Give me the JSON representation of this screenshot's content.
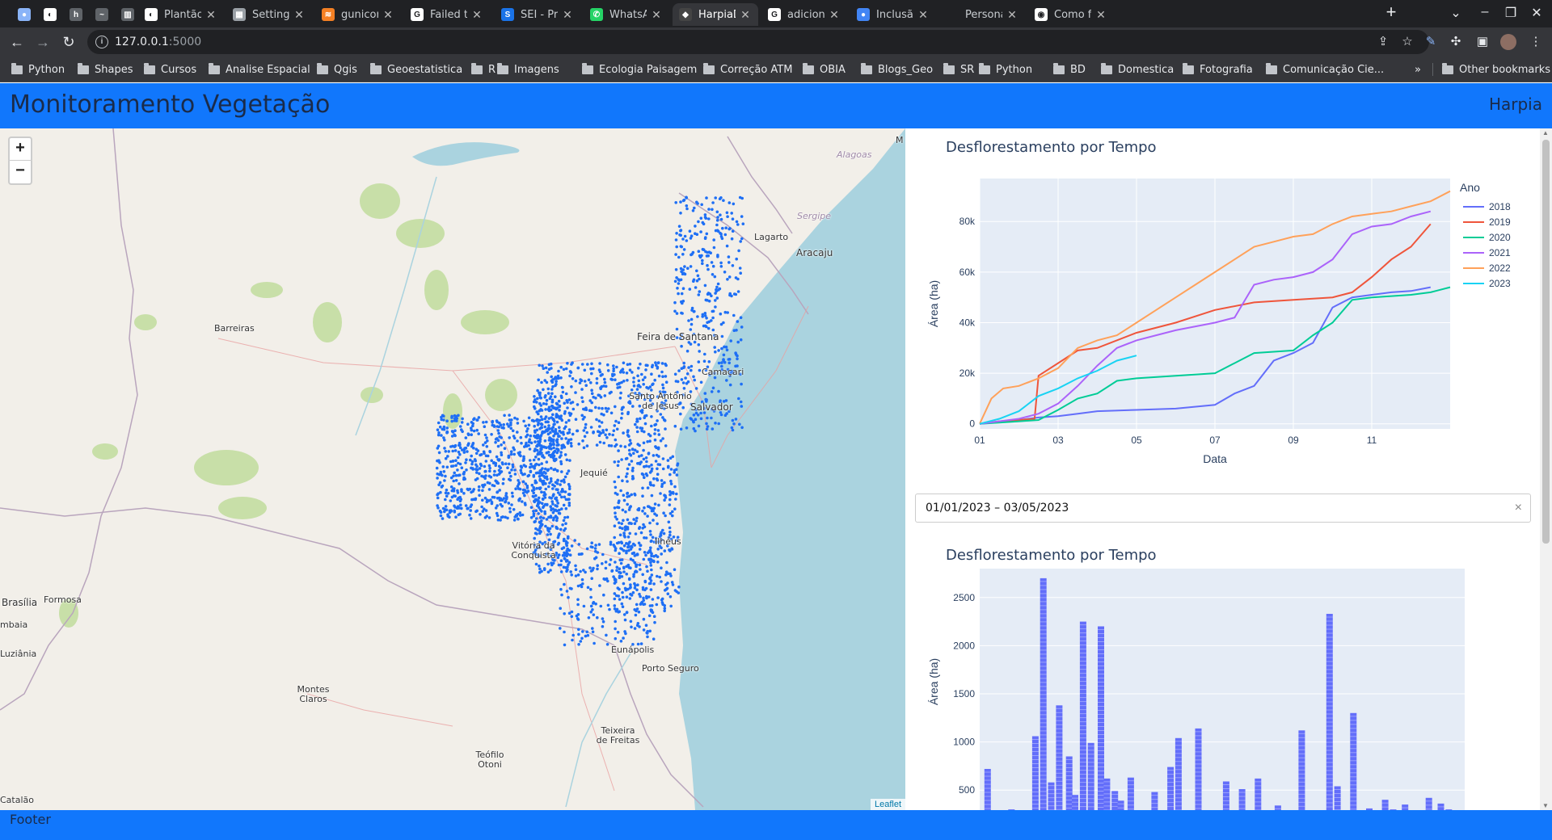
{
  "browser": {
    "tabs": [
      {
        "title": "",
        "color": "#8ab4f8",
        "glyph": "●"
      },
      {
        "title": "",
        "color": "#ffffff",
        "glyph": "◐"
      },
      {
        "title": "",
        "color": "#5f6368",
        "glyph": "h"
      },
      {
        "title": "",
        "color": "#5f6368",
        "glyph": "~"
      },
      {
        "title": "",
        "color": "#5f6368",
        "glyph": "▥"
      },
      {
        "title": "Plantão de",
        "color": "#ffffff",
        "glyph": "◐"
      },
      {
        "title": "Settings — i",
        "color": "#9aa0a6",
        "glyph": "▦"
      },
      {
        "title": "gunicorn - F",
        "color": "#f48024",
        "glyph": "≋"
      },
      {
        "title": "Failed to fin",
        "color": "#ffffff",
        "glyph": "G"
      },
      {
        "title": "SEI - Process",
        "color": "#1a73e8",
        "glyph": "S"
      },
      {
        "title": "WhatsApp",
        "color": "#25d366",
        "glyph": "✆"
      },
      {
        "title": "HarpiaDash",
        "color": "#444444",
        "glyph": "◆"
      },
      {
        "title": "adicionar im",
        "color": "#ffffff",
        "glyph": "G"
      },
      {
        "title": "Inclusão de",
        "color": "#4285f4",
        "glyph": "●"
      },
      {
        "title": "Personalizar",
        "color": "#202124",
        "glyph": ""
      },
      {
        "title": "Como fazer",
        "color": "#ffffff",
        "glyph": "◉"
      }
    ],
    "new_tab": "+",
    "url_host": "127.0.0.1",
    "url_port": ":5000",
    "bookmarks": [
      "Python",
      "Shapes",
      "Cursos",
      "Analise Espacial",
      "Qgis",
      "Geoestatistica",
      "R",
      "Imagens",
      "Ecologia Paisagem",
      "Correção ATM",
      "OBIA",
      "Blogs_Geo",
      "SR",
      "Python",
      "BD",
      "Domestica",
      "Fotografia",
      "Comunicação Cie..."
    ],
    "bookmarks_overflow": "»",
    "other_bookmarks": "Other bookmarks"
  },
  "app": {
    "title": "Monitoramento Vegetação",
    "brand": "Harpia",
    "footer": "Footer"
  },
  "map": {
    "zoom_in": "+",
    "zoom_out": "−",
    "attribution": "Leaflet",
    "places": {
      "alagoas": "Alagoas",
      "sergipe": "Sergipe",
      "lagarto": "Lagarto",
      "aracaju": "Aracaju",
      "barreiras": "Barreiras",
      "feira": "Feira de Santana",
      "camacari": "Camaçari",
      "santo_antonio": "Santo Antônio de Jesus",
      "salvador": "Salvador",
      "jequie": "Jequié",
      "ilheus": "Ilhéus",
      "vitoria": "Vitória da Conquista",
      "brasilia": "Brasília",
      "formosa": "Formosa",
      "luziania": "Luziânia",
      "cambaia": "mbaia",
      "montes_claros": "Montes Claros",
      "eunapolis": "Eunápolis",
      "porto_seguro": "Porto Seguro",
      "teixeira": "Teixeira de Freitas",
      "teofilo": "Teófilo Otoni",
      "catalao": "Catalão",
      "m": "M"
    },
    "point_color": "#1e6ff5"
  },
  "date_picker": {
    "value": "01/01/2023 – 03/05/2023",
    "clear": "×"
  },
  "line_chart_title": "Desflorestamento por Tempo",
  "bar_chart_title": "Desflorestamento por Tempo",
  "chart_data": [
    {
      "type": "line",
      "title": "Desflorestamento por Tempo",
      "xlabel": "Data",
      "ylabel": "Área (ha)",
      "legend_title": "Ano",
      "legend_position": "right",
      "x_ticks": [
        "01",
        "03",
        "05",
        "07",
        "09",
        "11"
      ],
      "y_ticks": [
        "0",
        "20k",
        "40k",
        "60k",
        "80k"
      ],
      "xlim": [
        1,
        13
      ],
      "ylim": [
        -2000,
        97000
      ],
      "grid": true,
      "series": [
        {
          "name": "2018",
          "color": "#636efa",
          "x": [
            1,
            1.5,
            2,
            2.5,
            3,
            3.5,
            4,
            5,
            6,
            7,
            7.5,
            8,
            8.5,
            9,
            9.5,
            10,
            10.5,
            11,
            11.5,
            12,
            12.5
          ],
          "y": [
            0,
            1000,
            1500,
            2500,
            3000,
            4000,
            5000,
            5500,
            6000,
            7500,
            12000,
            15000,
            25000,
            28000,
            32000,
            46000,
            50000,
            51000,
            52000,
            52500,
            54000
          ]
        },
        {
          "name": "2019",
          "color": "#ef553b",
          "x": [
            1,
            1.5,
            2,
            2.4,
            2.5,
            3,
            3.5,
            4,
            5,
            6,
            7,
            8,
            9,
            10,
            10.5,
            11,
            11.5,
            12,
            12.5
          ],
          "y": [
            0,
            1000,
            1500,
            2000,
            19000,
            24000,
            29000,
            30000,
            36000,
            40000,
            45000,
            48000,
            49000,
            50000,
            52000,
            58000,
            65000,
            70000,
            79000
          ]
        },
        {
          "name": "2020",
          "color": "#00cc96",
          "x": [
            1,
            1.5,
            2,
            2.5,
            3,
            3.5,
            4,
            4.5,
            5,
            6,
            7,
            7.5,
            8,
            9,
            9.5,
            10,
            10.5,
            11,
            12,
            12.5,
            13
          ],
          "y": [
            0,
            500,
            1000,
            1500,
            5500,
            10000,
            12000,
            17000,
            18000,
            19000,
            20000,
            24000,
            28000,
            29000,
            35000,
            40000,
            49000,
            50000,
            51000,
            52000,
            54000
          ]
        },
        {
          "name": "2021",
          "color": "#ab63fa",
          "x": [
            1,
            2,
            2.5,
            3,
            3.5,
            4,
            4.5,
            5,
            5.5,
            6,
            7,
            7.5,
            8,
            8.5,
            9,
            9.5,
            10,
            10.5,
            11,
            11.5,
            12,
            12.5
          ],
          "y": [
            0,
            2000,
            4000,
            8000,
            15000,
            23000,
            30000,
            33000,
            35000,
            37000,
            40000,
            42000,
            55000,
            57000,
            58000,
            60000,
            65000,
            75000,
            78000,
            79000,
            82000,
            84000
          ]
        },
        {
          "name": "2022",
          "color": "#ffa15a",
          "x": [
            1,
            1.3,
            1.6,
            2,
            2.5,
            3,
            3.5,
            4,
            4.5,
            5,
            5.5,
            6,
            6.5,
            7,
            7.5,
            8,
            8.5,
            9,
            9.5,
            10,
            10.5,
            11,
            11.5,
            12,
            12.5,
            13
          ],
          "y": [
            0,
            10000,
            14000,
            15000,
            18000,
            22000,
            30000,
            33000,
            35000,
            40000,
            45000,
            50000,
            55000,
            60000,
            65000,
            70000,
            72000,
            74000,
            75000,
            79000,
            82000,
            83000,
            84000,
            86000,
            88000,
            92000
          ]
        },
        {
          "name": "2023",
          "color": "#19d3f3",
          "x": [
            1,
            1.5,
            2,
            2.5,
            3,
            3.5,
            4,
            4.5,
            5
          ],
          "y": [
            0,
            2000,
            5000,
            11000,
            14000,
            18000,
            21000,
            25000,
            27000
          ]
        }
      ]
    },
    {
      "type": "bar",
      "title": "Desflorestamento por Tempo",
      "ylabel": "Área (ha)",
      "color": "#636efa",
      "y_ticks": [
        "500",
        "1000",
        "1500",
        "2000",
        "2500"
      ],
      "ylim": [
        200,
        2800
      ],
      "x": [
        1,
        1.6,
        2,
        2.2,
        2.4,
        2.6,
        2.8,
        3.05,
        3.2,
        3.4,
        3.6,
        3.85,
        4,
        4.2,
        4.35,
        4.6,
        4.8,
        5.2,
        5.6,
        5.8,
        6,
        6.3,
        6.5,
        7,
        7.4,
        7.8,
        8.3,
        8.6,
        8.9,
        9.6,
        9.8,
        10.2,
        10.4,
        10.6,
        11,
        11.2,
        11.5,
        11.8,
        12.1,
        12.4,
        12.6
      ],
      "values": [
        720,
        300,
        270,
        1060,
        2700,
        580,
        1380,
        850,
        450,
        2250,
        990,
        2200,
        620,
        490,
        390,
        630,
        240,
        480,
        740,
        1040,
        270,
        1140,
        290,
        590,
        510,
        620,
        340,
        290,
        1120,
        2330,
        540,
        1300,
        230,
        310,
        400,
        300,
        350,
        250,
        420,
        360,
        300
      ]
    }
  ]
}
